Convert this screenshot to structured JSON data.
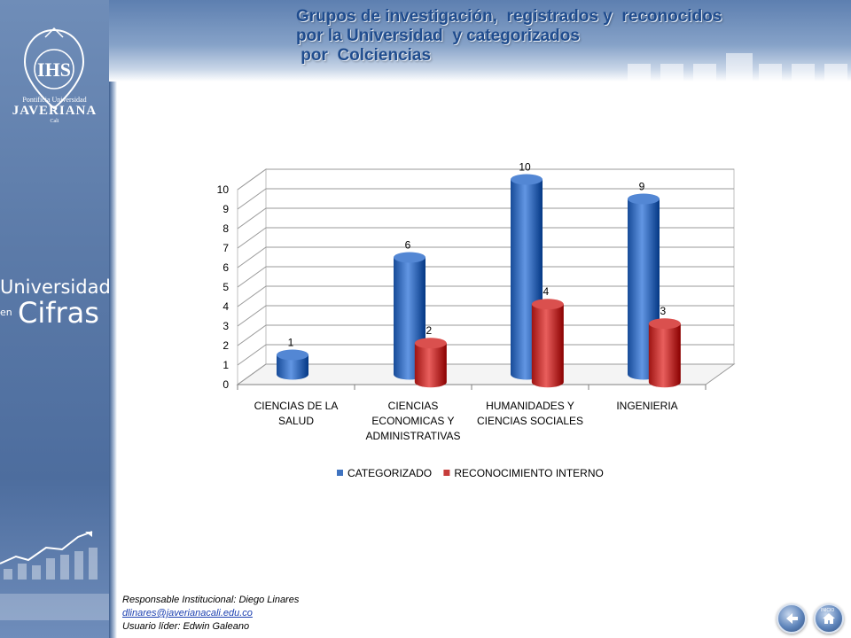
{
  "title_lines": [
    "Grupos de investigación,  registrados y  reconocidos",
    "por la Universidad  y categorizados",
    " por  Colciencias"
  ],
  "logo": {
    "line1": "Pontificia Universidad",
    "line2": "JAVERIANA",
    "line3": "Cali"
  },
  "brand": {
    "line1": "Universidad",
    "line2": "en",
    "line3": "Cifras"
  },
  "footer": {
    "responsible": "Responsable  Institucional: Diego Linares",
    "email": "dlinares@javerianacali.edu.co",
    "leader": "Usuario líder: Edwin Galeano"
  },
  "nav": {
    "home_label": "INICIO"
  },
  "chart_data": {
    "type": "bar",
    "categories": [
      [
        "CIENCIAS DE LA",
        "SALUD"
      ],
      [
        "CIENCIAS",
        "ECONOMICAS Y",
        "ADMINISTRATIVAS"
      ],
      [
        "HUMANIDADES Y",
        "CIENCIAS SOCIALES"
      ],
      [
        "INGENIERIA"
      ]
    ],
    "series": [
      {
        "name": "CATEGORIZADO",
        "values": [
          1,
          6,
          10,
          9
        ],
        "color": "#3f73c0"
      },
      {
        "name": "RECONOCIMIENTO INTERNO",
        "values": [
          null,
          2,
          4,
          3
        ],
        "color": "#c63c3a"
      }
    ],
    "ylim": [
      0,
      10
    ],
    "yticks": [
      "0",
      "1",
      "2",
      "3",
      "4",
      "5",
      "6",
      "7",
      "8",
      "9",
      "10"
    ],
    "grid": true,
    "legend": "bottom",
    "style": "3d-cylinder"
  }
}
